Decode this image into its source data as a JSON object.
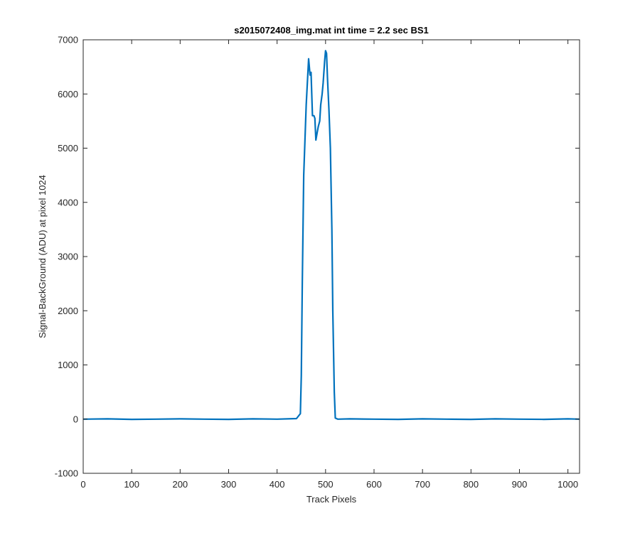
{
  "chart_data": {
    "type": "line",
    "title": "s2015072408_img.mat int time = 2.2 sec   BS1",
    "xlabel": "Track Pixels",
    "ylabel": "Signal-BackGround (ADU) at pixel 1024",
    "xlim": [
      0,
      1024
    ],
    "ylim": [
      -1000,
      7000
    ],
    "xticks": [
      0,
      100,
      200,
      300,
      400,
      500,
      600,
      700,
      800,
      900,
      1000
    ],
    "yticks": [
      -1000,
      0,
      1000,
      2000,
      3000,
      4000,
      5000,
      6000,
      7000
    ],
    "grid": false,
    "box": true,
    "line_color": "#0072BD",
    "series": [
      {
        "x": [
          0,
          50,
          100,
          150,
          200,
          250,
          300,
          350,
          400,
          440,
          448,
          450,
          452,
          455,
          460,
          465,
          468,
          470,
          473,
          476,
          478,
          480,
          483,
          485,
          488,
          490,
          493,
          495,
          498,
          500,
          502,
          504,
          507,
          510,
          513,
          515,
          518,
          520,
          525,
          550,
          600,
          650,
          700,
          750,
          800,
          850,
          900,
          950,
          1000,
          1024
        ],
        "y": [
          0,
          5,
          -5,
          0,
          5,
          0,
          -5,
          5,
          0,
          10,
          100,
          800,
          2500,
          4500,
          5800,
          6650,
          6350,
          6400,
          5600,
          5600,
          5550,
          5150,
          5300,
          5400,
          5500,
          5800,
          6000,
          6200,
          6600,
          6800,
          6750,
          6300,
          5700,
          5000,
          3500,
          2000,
          500,
          20,
          0,
          5,
          0,
          -5,
          5,
          0,
          -5,
          5,
          0,
          -5,
          5,
          0
        ]
      }
    ]
  }
}
